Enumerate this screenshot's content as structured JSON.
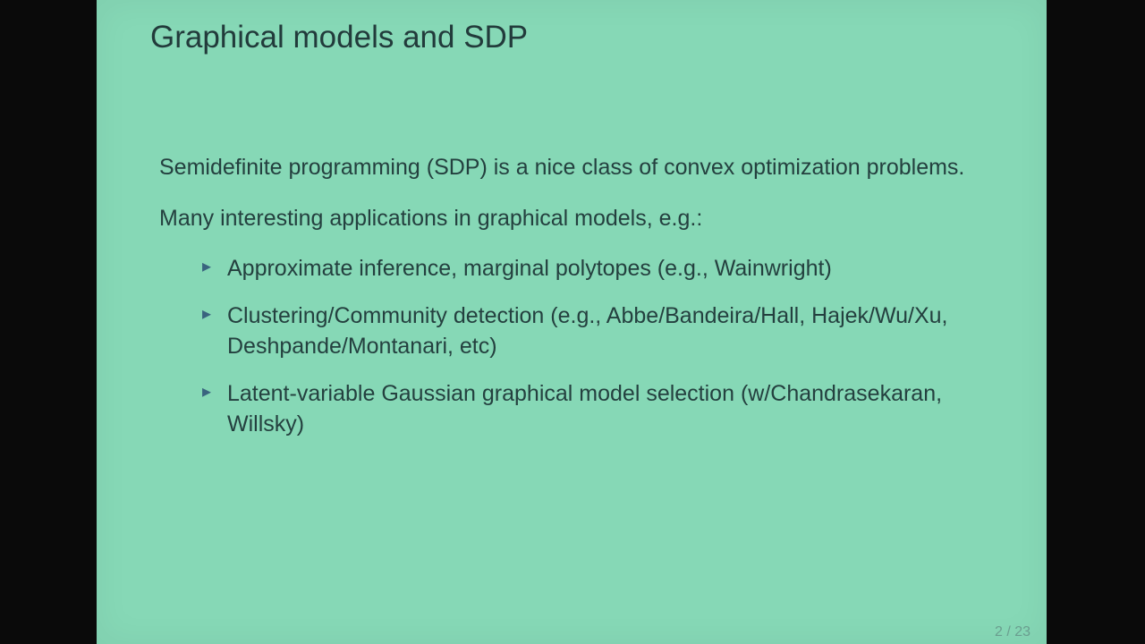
{
  "slide": {
    "title": "Graphical models and SDP",
    "background_color": "#86d8b6",
    "title_color": "#223b3b",
    "text_color": "#24403f",
    "bullet_color": "#3a647f",
    "title_fontsize": 35,
    "body_fontsize": 25,
    "paragraphs": [
      "Semidefinite programming (SDP) is a nice class of convex optimization problems.",
      "Many interesting applications in graphical models, e.g.:"
    ],
    "bullets": [
      "Approximate inference, marginal polytopes (e.g., Wainwright)",
      "Clustering/Community detection (e.g., Abbe/Bandeira/Hall, Hajek/Wu/Xu, Deshpande/Montanari, etc)",
      "Latent-variable Gaussian graphical model selection (w/Chandrasekaran, Willsky)"
    ],
    "page_number": "2 / 23"
  },
  "frame": {
    "background_color": "#0a0a0a"
  }
}
